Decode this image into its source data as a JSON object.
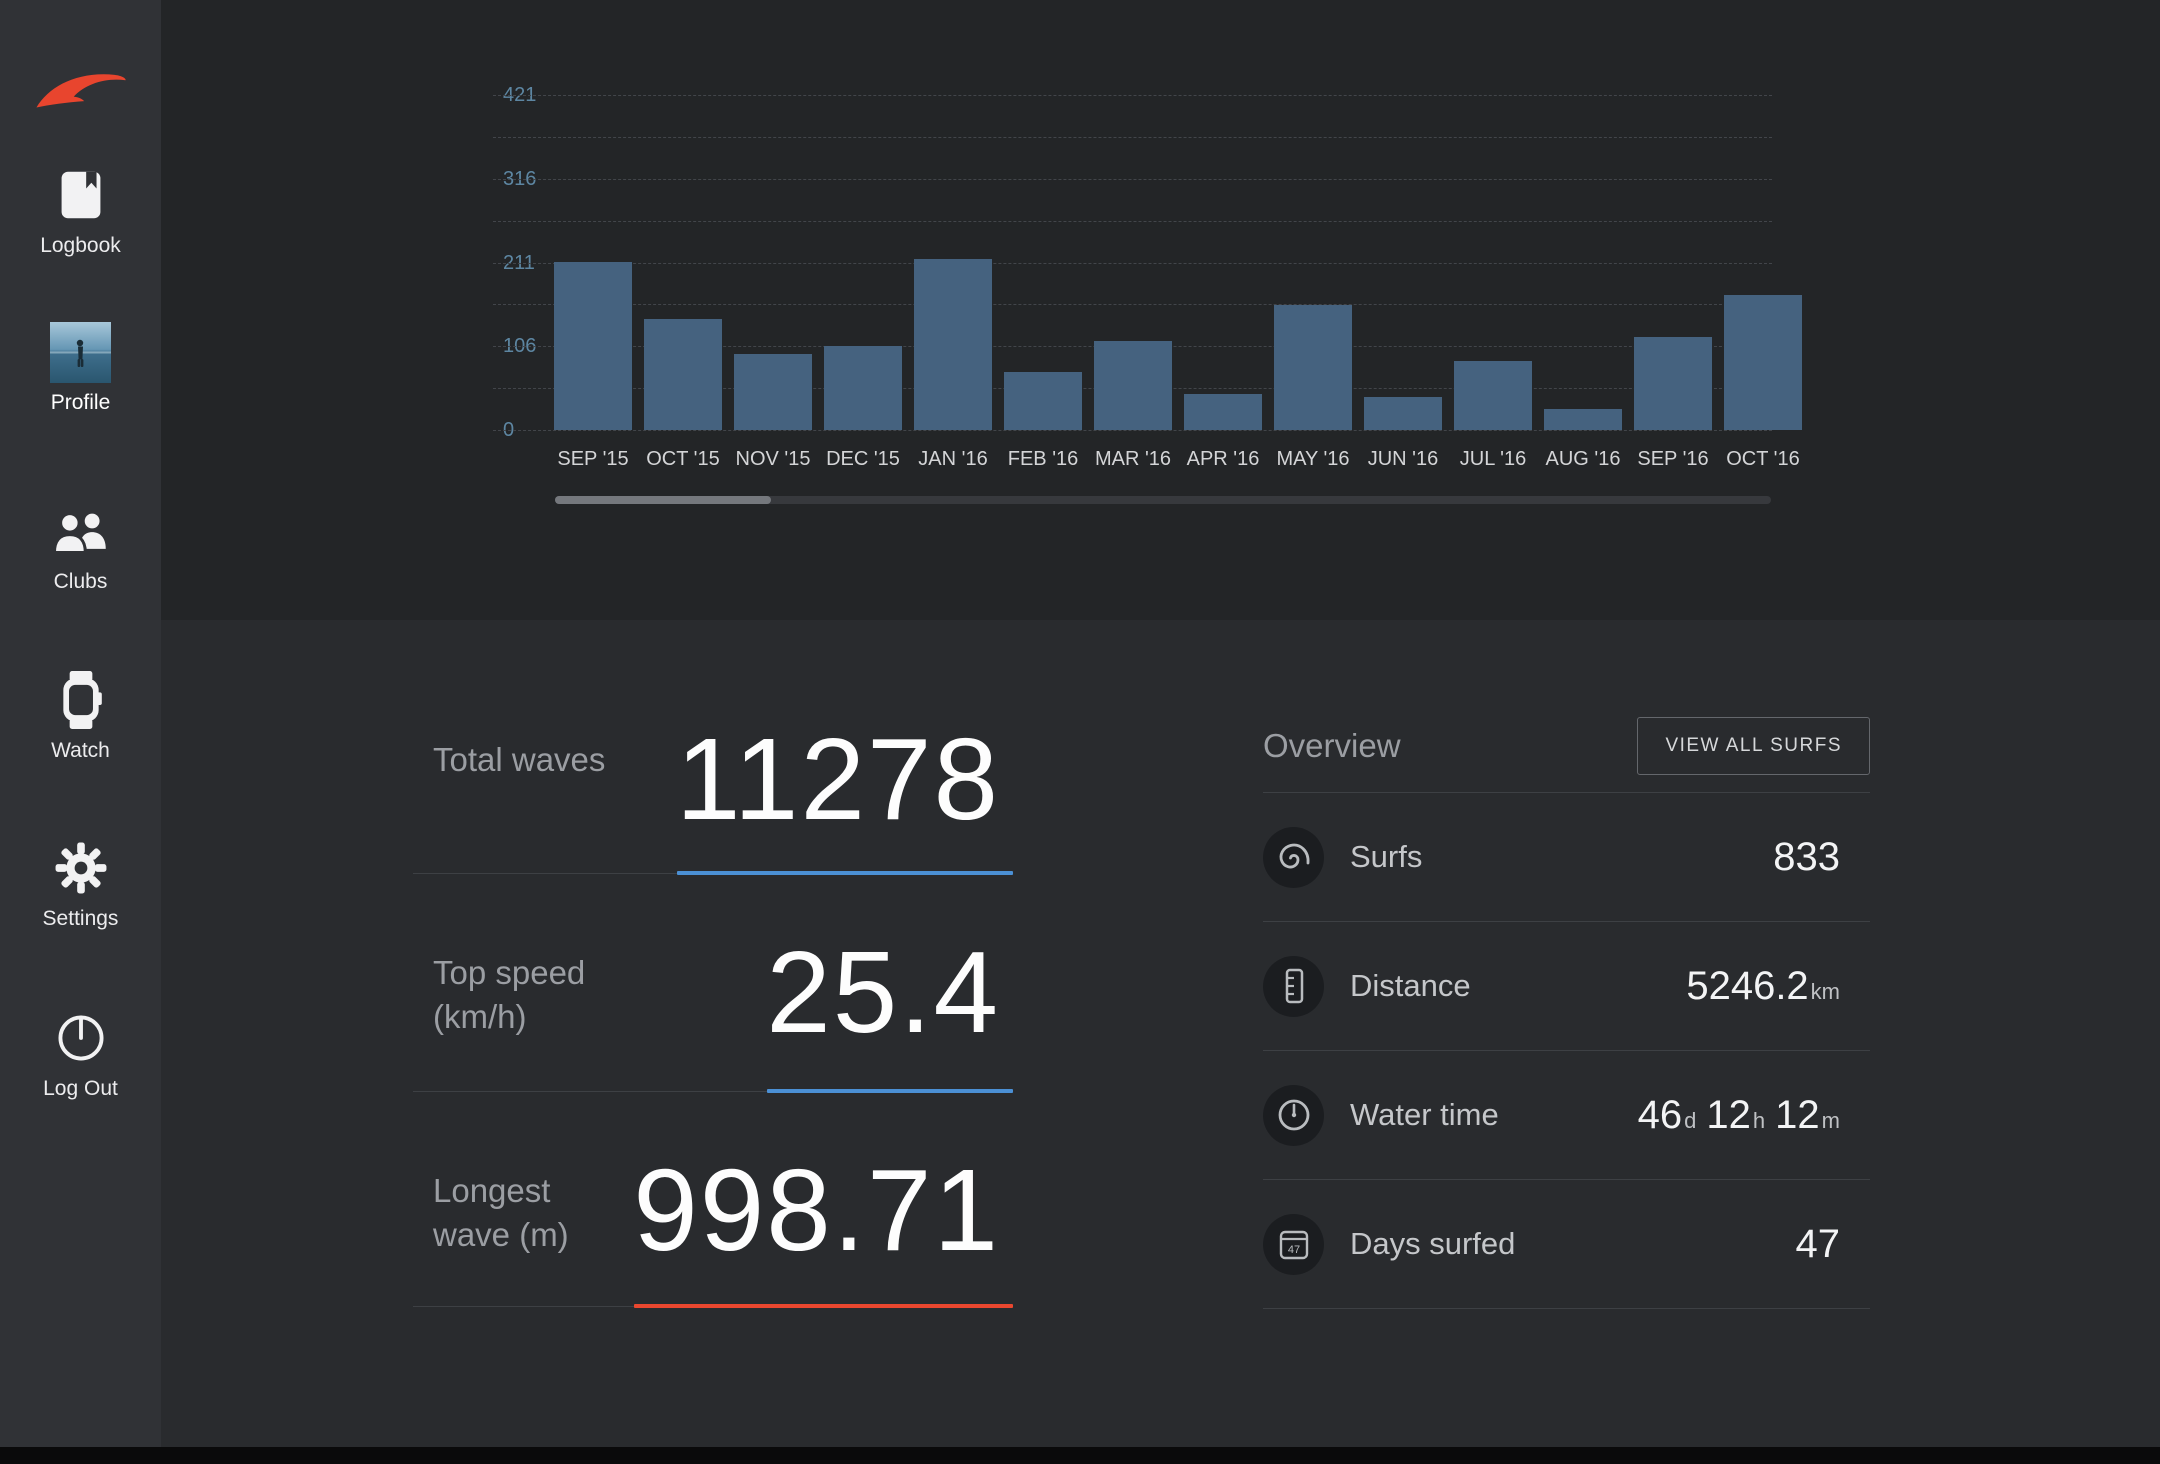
{
  "sidebar": {
    "items": [
      {
        "id": "logbook",
        "label": "Logbook",
        "active": false
      },
      {
        "id": "profile",
        "label": "Profile",
        "active": true
      },
      {
        "id": "clubs",
        "label": "Clubs",
        "active": false
      },
      {
        "id": "watch",
        "label": "Watch",
        "active": false
      },
      {
        "id": "settings",
        "label": "Settings",
        "active": false
      },
      {
        "id": "logout",
        "label": "Log Out",
        "active": false
      }
    ]
  },
  "chart_data": {
    "type": "bar",
    "categories": [
      "SEP '15",
      "OCT '15",
      "NOV '15",
      "DEC '15",
      "JAN '16",
      "FEB '16",
      "MAR '16",
      "APR '16",
      "MAY '16",
      "JUN '16",
      "JUL '16",
      "AUG '16",
      "SEP '16",
      "OCT '16"
    ],
    "values": [
      211,
      140,
      95,
      105,
      215,
      73,
      112,
      45,
      157,
      42,
      87,
      26,
      117,
      170
    ],
    "y_ticks": [
      0,
      106,
      211,
      316,
      421
    ],
    "ylim": [
      0,
      421
    ],
    "xlabel": "",
    "ylabel": "",
    "grid": "dashed-horizontal",
    "legend": "none",
    "bar_color": "#45627f"
  },
  "stats": [
    {
      "id": "total-waves",
      "label_lines": [
        "Total waves"
      ],
      "value": "11278",
      "accent": "#4b90d5"
    },
    {
      "id": "top-speed",
      "label_lines": [
        "Top speed",
        "(km/h)"
      ],
      "value": "25.4",
      "accent": "#4b90d5"
    },
    {
      "id": "longest-wave",
      "label_lines": [
        "Longest",
        "wave (m)"
      ],
      "value": "998.71",
      "accent": "#e9472f"
    }
  ],
  "overview": {
    "heading": "Overview",
    "button_label": "VIEW ALL SURFS",
    "rows": [
      {
        "id": "surfs",
        "icon": "surf-wave-icon",
        "label": "Surfs",
        "parts": [
          {
            "v": "833"
          }
        ]
      },
      {
        "id": "distance",
        "icon": "ruler-icon",
        "label": "Distance",
        "parts": [
          {
            "v": "5246.2",
            "u": "km"
          }
        ]
      },
      {
        "id": "water-time",
        "icon": "water-time-icon",
        "label": "Water time",
        "parts": [
          {
            "v": "46",
            "u": "d"
          },
          {
            "v": "12",
            "u": "h"
          },
          {
            "v": "12",
            "u": "m"
          }
        ]
      },
      {
        "id": "days-surfed",
        "icon": "calendar-icon",
        "label": "Days surfed",
        "icon_text": "47",
        "parts": [
          {
            "v": "47"
          }
        ]
      }
    ]
  },
  "colors": {
    "accent_blue": "#4b90d5",
    "accent_red": "#e9472f",
    "brand_red": "#e8452e",
    "bar_blue": "#45627f"
  }
}
